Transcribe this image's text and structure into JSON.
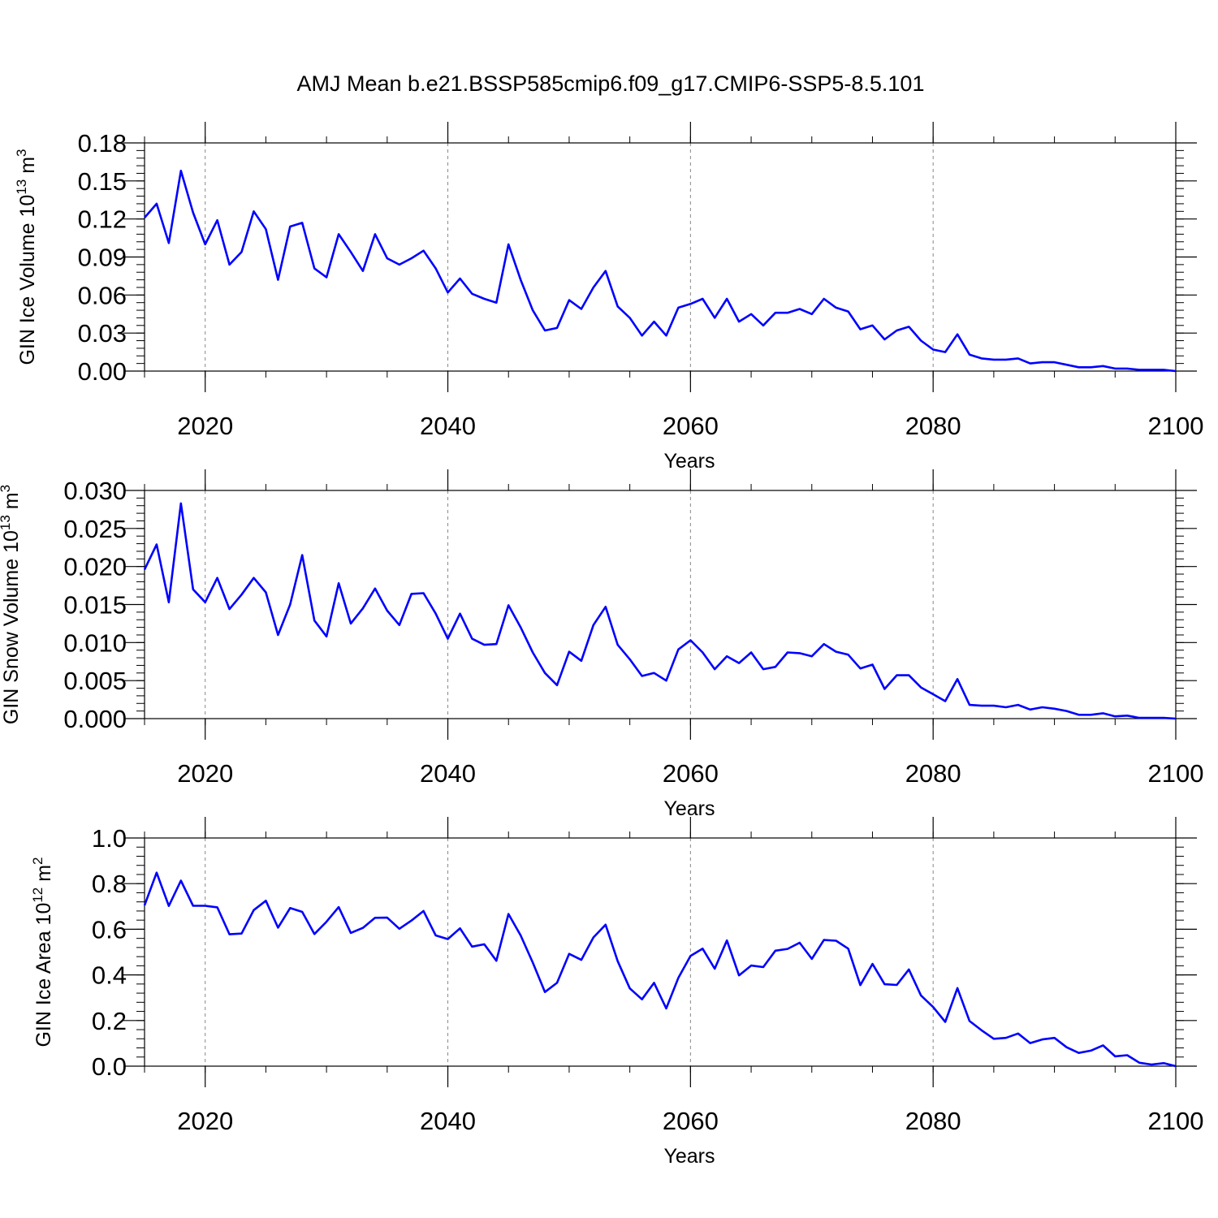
{
  "title": "AMJ Mean b.e21.BSSP585cmip6.f09_g17.CMIP6-SSP5-8.5.101",
  "colors": {
    "line": "#0000ff",
    "axis": "#000000",
    "grid": "#888888"
  },
  "chart_data": [
    {
      "type": "line",
      "title": "AMJ Mean b.e21.BSSP585cmip6.f09_g17.CMIP6-SSP5-8.5.101",
      "xlabel": "Years",
      "ylabel": "GIN Ice Volume 10",
      "ylabel_exp": "13",
      "ylabel_unit": " m",
      "ylabel_unit_exp": "3",
      "xlim": [
        2015,
        2100
      ],
      "ylim": [
        0,
        0.18
      ],
      "xticks": [
        2020,
        2040,
        2060,
        2080,
        2100
      ],
      "xtick_labels": [
        "2020",
        "2040",
        "2060",
        "2080",
        "2100"
      ],
      "yticks": [
        0,
        0.03,
        0.06,
        0.09,
        0.12,
        0.15,
        0.18
      ],
      "ytick_labels": [
        "0.00",
        "0.03",
        "0.06",
        "0.09",
        "0.12",
        "0.15",
        "0.18"
      ],
      "grid": "dashed vertical at major x ticks",
      "x": [
        2015,
        2016,
        2017,
        2018,
        2019,
        2020,
        2021,
        2022,
        2023,
        2024,
        2025,
        2026,
        2027,
        2028,
        2029,
        2030,
        2031,
        2032,
        2033,
        2034,
        2035,
        2036,
        2037,
        2038,
        2039,
        2040,
        2041,
        2042,
        2043,
        2044,
        2045,
        2046,
        2047,
        2048,
        2049,
        2050,
        2051,
        2052,
        2053,
        2054,
        2055,
        2056,
        2057,
        2058,
        2059,
        2060,
        2061,
        2062,
        2063,
        2064,
        2065,
        2066,
        2067,
        2068,
        2069,
        2070,
        2071,
        2072,
        2073,
        2074,
        2075,
        2076,
        2077,
        2078,
        2079,
        2080,
        2081,
        2082,
        2083,
        2084,
        2085,
        2086,
        2087,
        2088,
        2089,
        2090,
        2091,
        2092,
        2093,
        2094,
        2095,
        2096,
        2097,
        2098,
        2099,
        2100
      ],
      "series": [
        {
          "name": "GIN Ice Volume",
          "values": [
            0.121,
            0.132,
            0.101,
            0.158,
            0.125,
            0.1,
            0.119,
            0.084,
            0.094,
            0.126,
            0.112,
            0.072,
            0.114,
            0.117,
            0.081,
            0.074,
            0.108,
            0.094,
            0.079,
            0.108,
            0.089,
            0.084,
            0.089,
            0.095,
            0.081,
            0.062,
            0.073,
            0.061,
            0.057,
            0.054,
            0.1,
            0.072,
            0.048,
            0.032,
            0.034,
            0.056,
            0.049,
            0.066,
            0.079,
            0.051,
            0.042,
            0.028,
            0.039,
            0.028,
            0.05,
            0.053,
            0.057,
            0.042,
            0.057,
            0.039,
            0.045,
            0.036,
            0.046,
            0.046,
            0.049,
            0.045,
            0.057,
            0.05,
            0.047,
            0.033,
            0.036,
            0.025,
            0.032,
            0.035,
            0.024,
            0.017,
            0.015,
            0.029,
            0.013,
            0.01,
            0.009,
            0.009,
            0.01,
            0.006,
            0.007,
            0.007,
            0.005,
            0.003,
            0.003,
            0.004,
            0.002,
            0.002,
            0.001,
            0.001,
            0.001,
            0.0
          ]
        }
      ]
    },
    {
      "type": "line",
      "xlabel": "Years",
      "ylabel": "GIN Snow Volume 10",
      "ylabel_exp": "13",
      "ylabel_unit": " m",
      "ylabel_unit_exp": "3",
      "xlim": [
        2015,
        2100
      ],
      "ylim": [
        0,
        0.03
      ],
      "xticks": [
        2020,
        2040,
        2060,
        2080,
        2100
      ],
      "xtick_labels": [
        "2020",
        "2040",
        "2060",
        "2080",
        "2100"
      ],
      "yticks": [
        0,
        0.005,
        0.01,
        0.015,
        0.02,
        0.025,
        0.03
      ],
      "ytick_labels": [
        "0.000",
        "0.005",
        "0.010",
        "0.015",
        "0.020",
        "0.025",
        "0.030"
      ],
      "grid": "dashed vertical at major x ticks",
      "x": [
        2015,
        2016,
        2017,
        2018,
        2019,
        2020,
        2021,
        2022,
        2023,
        2024,
        2025,
        2026,
        2027,
        2028,
        2029,
        2030,
        2031,
        2032,
        2033,
        2034,
        2035,
        2036,
        2037,
        2038,
        2039,
        2040,
        2041,
        2042,
        2043,
        2044,
        2045,
        2046,
        2047,
        2048,
        2049,
        2050,
        2051,
        2052,
        2053,
        2054,
        2055,
        2056,
        2057,
        2058,
        2059,
        2060,
        2061,
        2062,
        2063,
        2064,
        2065,
        2066,
        2067,
        2068,
        2069,
        2070,
        2071,
        2072,
        2073,
        2074,
        2075,
        2076,
        2077,
        2078,
        2079,
        2080,
        2081,
        2082,
        2083,
        2084,
        2085,
        2086,
        2087,
        2088,
        2089,
        2090,
        2091,
        2092,
        2093,
        2094,
        2095,
        2096,
        2097,
        2098,
        2099,
        2100
      ],
      "series": [
        {
          "name": "GIN Snow Volume",
          "values": [
            0.0196,
            0.0229,
            0.0153,
            0.0283,
            0.017,
            0.0153,
            0.0185,
            0.0144,
            0.0163,
            0.0185,
            0.0166,
            0.011,
            0.015,
            0.0215,
            0.0129,
            0.0108,
            0.0178,
            0.0125,
            0.0145,
            0.0171,
            0.0142,
            0.0123,
            0.0164,
            0.0165,
            0.0138,
            0.0105,
            0.0138,
            0.0105,
            0.0097,
            0.0098,
            0.0149,
            0.012,
            0.0087,
            0.006,
            0.0044,
            0.0088,
            0.0076,
            0.0123,
            0.0147,
            0.0097,
            0.0078,
            0.0056,
            0.006,
            0.005,
            0.0091,
            0.0103,
            0.0087,
            0.0065,
            0.0082,
            0.0073,
            0.0087,
            0.0065,
            0.0068,
            0.0087,
            0.0086,
            0.0082,
            0.0098,
            0.0088,
            0.0084,
            0.0066,
            0.0071,
            0.0039,
            0.0057,
            0.0057,
            0.0041,
            0.0032,
            0.0023,
            0.0052,
            0.0018,
            0.0017,
            0.0017,
            0.0015,
            0.0018,
            0.0012,
            0.0015,
            0.0013,
            0.001,
            0.0005,
            0.0005,
            0.0007,
            0.0003,
            0.0004,
            0.0001,
            0.0001,
            0.0001,
            0.0
          ]
        }
      ]
    },
    {
      "type": "line",
      "xlabel": "Years",
      "ylabel": "GIN Ice Area 10",
      "ylabel_exp": "12",
      "ylabel_unit": " m",
      "ylabel_unit_exp": "2",
      "xlim": [
        2015,
        2100
      ],
      "ylim": [
        0,
        1.0
      ],
      "xticks": [
        2020,
        2040,
        2060,
        2080,
        2100
      ],
      "xtick_labels": [
        "2020",
        "2040",
        "2060",
        "2080",
        "2100"
      ],
      "yticks": [
        0,
        0.2,
        0.4,
        0.6,
        0.8,
        1.0
      ],
      "ytick_labels": [
        "0.0",
        "0.2",
        "0.4",
        "0.6",
        "0.8",
        "1.0"
      ],
      "grid": "dashed vertical at major x ticks",
      "x": [
        2015,
        2016,
        2017,
        2018,
        2019,
        2020,
        2021,
        2022,
        2023,
        2024,
        2025,
        2026,
        2027,
        2028,
        2029,
        2030,
        2031,
        2032,
        2033,
        2034,
        2035,
        2036,
        2037,
        2038,
        2039,
        2040,
        2041,
        2042,
        2043,
        2044,
        2045,
        2046,
        2047,
        2048,
        2049,
        2050,
        2051,
        2052,
        2053,
        2054,
        2055,
        2056,
        2057,
        2058,
        2059,
        2060,
        2061,
        2062,
        2063,
        2064,
        2065,
        2066,
        2067,
        2068,
        2069,
        2070,
        2071,
        2072,
        2073,
        2074,
        2075,
        2076,
        2077,
        2078,
        2079,
        2080,
        2081,
        2082,
        2083,
        2084,
        2085,
        2086,
        2087,
        2088,
        2089,
        2090,
        2091,
        2092,
        2093,
        2094,
        2095,
        2096,
        2097,
        2098,
        2099,
        2100
      ],
      "series": [
        {
          "name": "GIN Ice Area",
          "values": [
            0.705,
            0.848,
            0.702,
            0.813,
            0.703,
            0.703,
            0.696,
            0.578,
            0.581,
            0.684,
            0.725,
            0.607,
            0.693,
            0.676,
            0.579,
            0.633,
            0.697,
            0.584,
            0.606,
            0.65,
            0.651,
            0.602,
            0.638,
            0.68,
            0.573,
            0.557,
            0.604,
            0.524,
            0.534,
            0.462,
            0.667,
            0.573,
            0.454,
            0.325,
            0.365,
            0.492,
            0.466,
            0.564,
            0.62,
            0.46,
            0.341,
            0.293,
            0.365,
            0.253,
            0.387,
            0.483,
            0.515,
            0.427,
            0.551,
            0.398,
            0.441,
            0.434,
            0.506,
            0.514,
            0.541,
            0.47,
            0.553,
            0.55,
            0.515,
            0.355,
            0.448,
            0.359,
            0.356,
            0.424,
            0.31,
            0.259,
            0.194,
            0.342,
            0.198,
            0.157,
            0.12,
            0.124,
            0.143,
            0.101,
            0.117,
            0.124,
            0.083,
            0.058,
            0.068,
            0.091,
            0.043,
            0.048,
            0.015,
            0.007,
            0.013,
            0.0
          ]
        }
      ]
    }
  ]
}
